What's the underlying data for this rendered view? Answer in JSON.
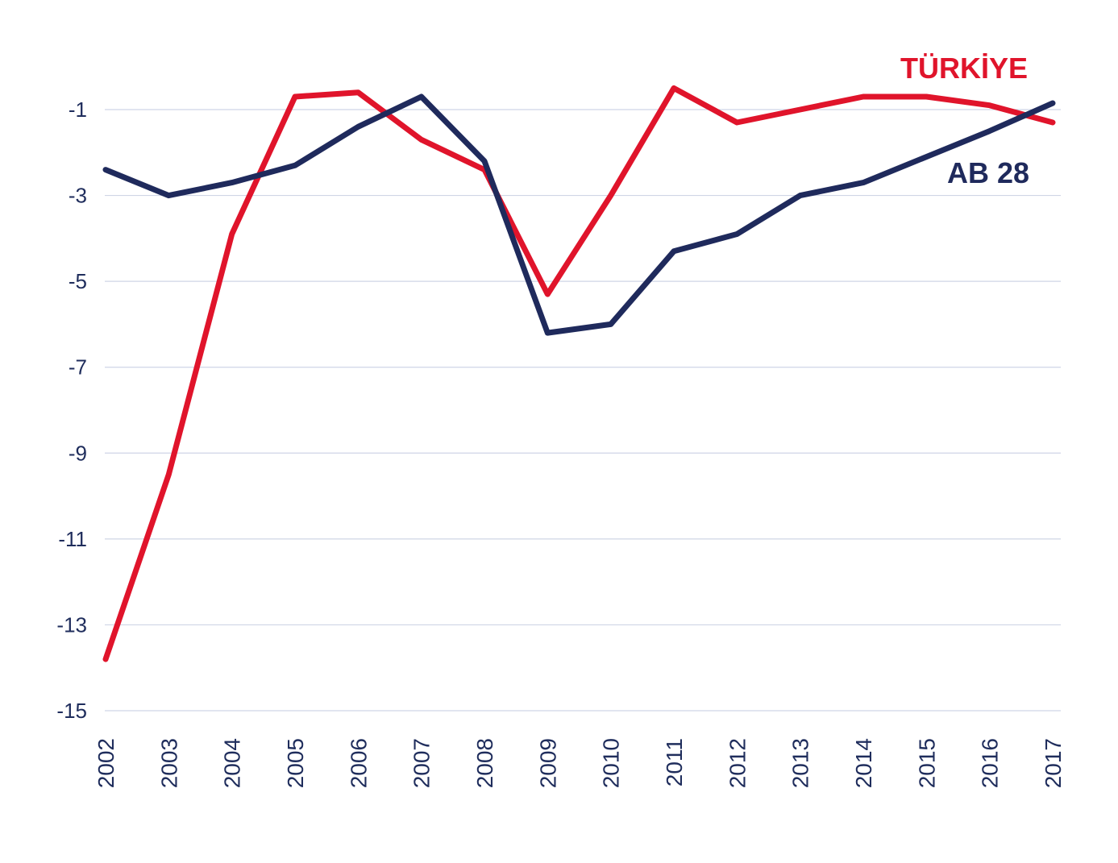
{
  "chart_data": {
    "type": "line",
    "x": [
      "2002",
      "2003",
      "2004",
      "2005",
      "2006",
      "2007",
      "2008",
      "2009",
      "2010",
      "2011",
      "2012",
      "2013",
      "2014",
      "2015",
      "2016",
      "2017"
    ],
    "yticks": [
      -1,
      -3,
      -5,
      -7,
      -9,
      -11,
      -13,
      -15
    ],
    "ytick_labels": [
      "-1",
      "-3",
      "-5",
      "-7",
      "-9",
      "-11",
      "-13",
      "-15"
    ],
    "ylim": [
      -15,
      1
    ],
    "grid": true,
    "series": [
      {
        "name": "TÜRKİYE",
        "color": "#e0142b",
        "values": [
          -13.8,
          -9.5,
          -3.9,
          -0.7,
          -0.6,
          -1.7,
          -2.4,
          -5.3,
          -3.0,
          -0.5,
          -1.3,
          -1.0,
          -0.7,
          -0.7,
          -0.9,
          -1.3
        ]
      },
      {
        "name": "AB 28",
        "color": "#1f2a5c",
        "values": [
          -2.4,
          -3.0,
          -2.7,
          -2.3,
          -1.4,
          -0.7,
          -2.2,
          -6.2,
          -6.0,
          -4.3,
          -3.9,
          -3.0,
          -2.7,
          -2.1,
          -1.5,
          -0.85
        ]
      }
    ]
  }
}
